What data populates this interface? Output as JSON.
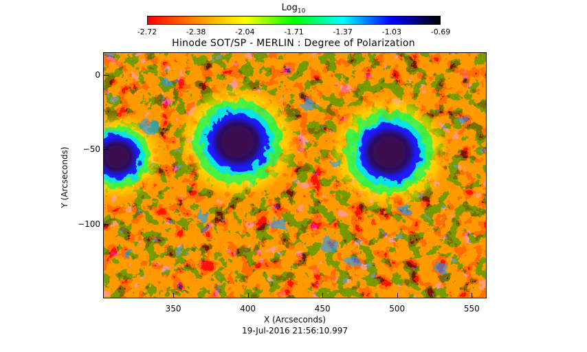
{
  "colorbar": {
    "title": "Log",
    "title_sub": "10",
    "ticks": [
      "-2.72",
      "-2.38",
      "-2.04",
      "-1.71",
      "-1.37",
      "-1.03",
      "-0.69"
    ],
    "colors": [
      "#ff0000",
      "#ff8c00",
      "#ffff00",
      "#00ff00",
      "#00ffff",
      "#0000ff",
      "#000000"
    ]
  },
  "chart_data": {
    "type": "heatmap",
    "title": "Hinode SOT/SP - MERLIN : Degree of Polarization",
    "xlabel": "X (Arcseconds)",
    "ylabel": "Y (Arcseconds)",
    "xlim": [
      303,
      560
    ],
    "ylim": [
      -150,
      15
    ],
    "x_ticks": [
      "350",
      "400",
      "450",
      "500",
      "550"
    ],
    "y_ticks": [
      "0",
      "−50",
      "−100"
    ],
    "color_range": [
      -2.72,
      -0.69
    ],
    "features": [
      {
        "label": "",
        "x": 312,
        "y": -55
      },
      {
        "label": "",
        "x": 393,
        "y": -45
      },
      {
        "label": "",
        "x": 495,
        "y": -52
      }
    ]
  },
  "footer": {
    "timestamp": "19-Jul-2016 21:56:10.997"
  }
}
